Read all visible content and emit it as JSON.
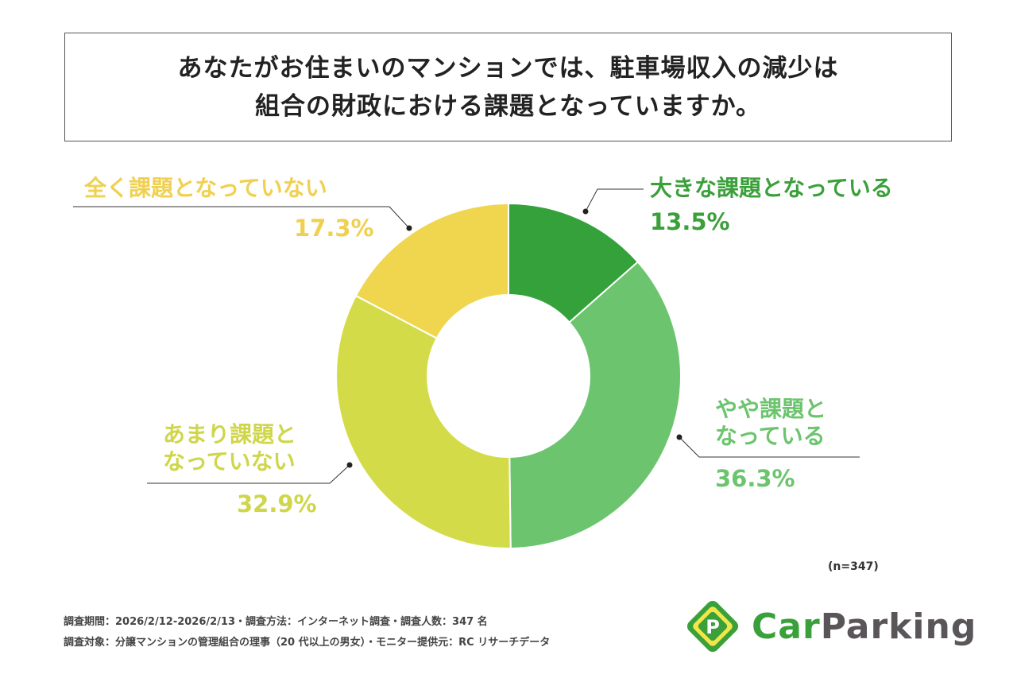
{
  "chart_data": {
    "type": "pie",
    "variant": "donut",
    "title_lines": [
      "あなたがお住まいのマンションでは、駐車場収入の減少は",
      "組合の財政における課題となっていますか。"
    ],
    "slices": [
      {
        "label": "大きな課題となっている",
        "label_lines": [
          "大きな課題となっている"
        ],
        "value": 13.5,
        "value_label": "13.5%",
        "color": "#34a13a"
      },
      {
        "label": "やや課題となっている",
        "label_lines": [
          "やや課題と",
          "なっている"
        ],
        "value": 36.3,
        "value_label": "36.3%",
        "color": "#6cc46e"
      },
      {
        "label": "あまり課題となっていない",
        "label_lines": [
          "あまり課題と",
          "なっていない"
        ],
        "value": 32.9,
        "value_label": "32.9%",
        "color": "#d3dc48"
      },
      {
        "label": "全く課題となっていない",
        "label_lines": [
          "全く課題となっていない"
        ],
        "value": 17.3,
        "value_label": "17.3%",
        "color": "#f0d54f"
      }
    ],
    "sample_size": "(n=347)"
  },
  "footer": {
    "line1": "調査期間：2026/2/12-2026/2/13・調査方法：インターネット調査・調査人数：347 名",
    "line2": "調査対象：分譲マンションの管理組合の理事（20 代以上の男女）・モニター提供元：RC リサーチデータ"
  },
  "logo": {
    "part1": "Car",
    "part2": "Parking",
    "mark": "P",
    "color1": "#3aa03a",
    "color2": "#5a5558"
  }
}
